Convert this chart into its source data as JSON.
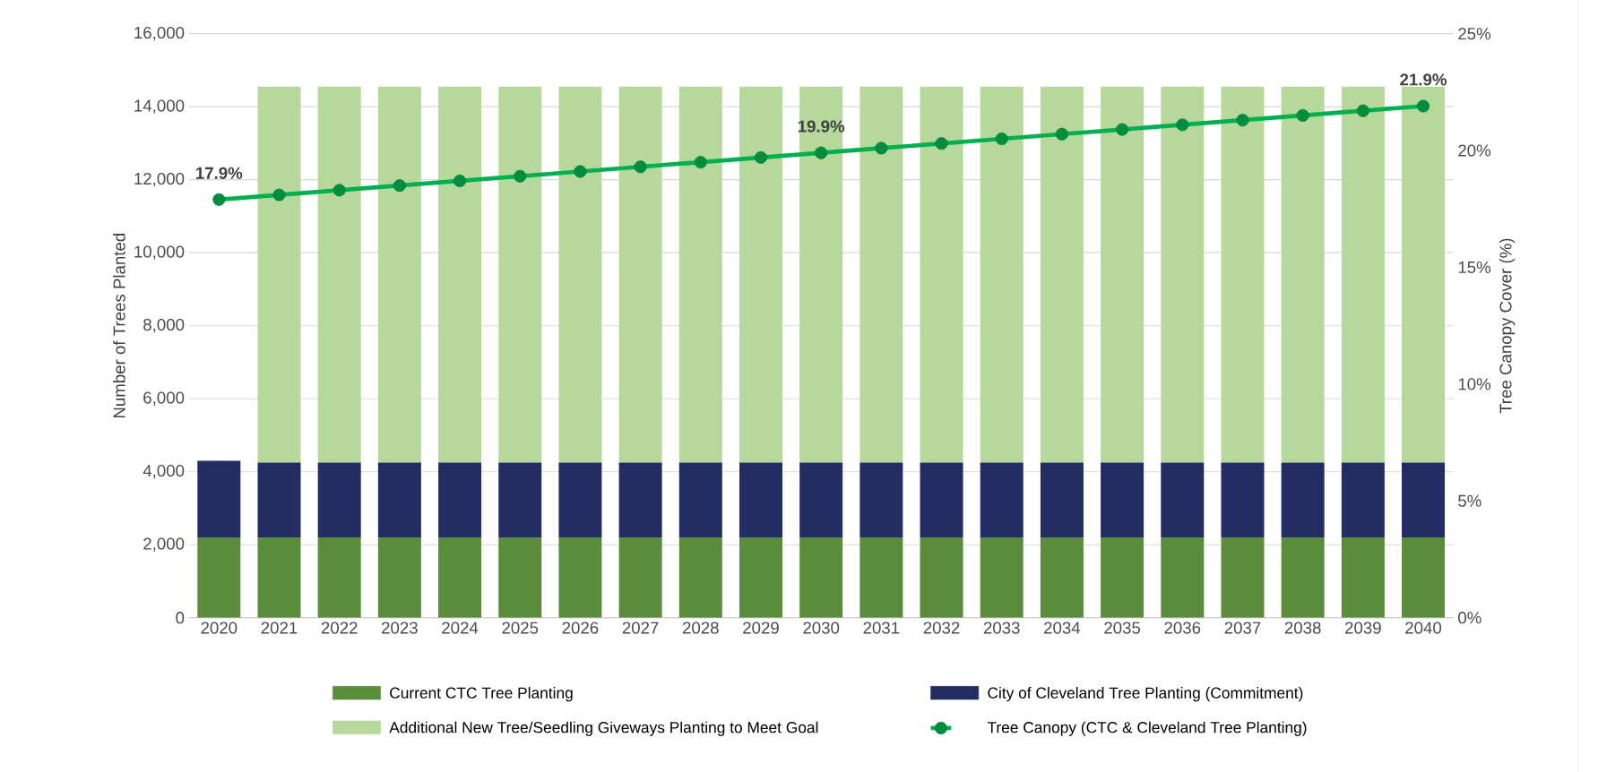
{
  "chart_data": {
    "type": "bar",
    "stacked": true,
    "ylabel": "Number of Trees Planted",
    "y2label": "Tree Canopy Cover (%)",
    "categories": [
      "2020",
      "2021",
      "2022",
      "2023",
      "2024",
      "2025",
      "2026",
      "2027",
      "2028",
      "2029",
      "2030",
      "2031",
      "2032",
      "2033",
      "2034",
      "2035",
      "2036",
      "2037",
      "2038",
      "2039",
      "2040"
    ],
    "series": [
      {
        "name": "Current CTC Tree Planting",
        "color": "#5b8c3b",
        "values": [
          2200,
          2200,
          2200,
          2200,
          2200,
          2200,
          2200,
          2200,
          2200,
          2200,
          2200,
          2200,
          2200,
          2200,
          2200,
          2200,
          2200,
          2200,
          2200,
          2200,
          2200
        ]
      },
      {
        "name": "City of Cleveland Tree Planting (Commitment)",
        "color": "#232c63",
        "values": [
          2100,
          2050,
          2050,
          2050,
          2050,
          2050,
          2050,
          2050,
          2050,
          2050,
          2050,
          2050,
          2050,
          2050,
          2050,
          2050,
          2050,
          2050,
          2050,
          2050,
          2050
        ]
      },
      {
        "name": "Additional New Tree/Seedling Giveways Planting to Meet Goal",
        "color": "#b6d99b",
        "values": [
          null,
          10300,
          10300,
          10300,
          10300,
          10300,
          10300,
          10300,
          10300,
          10300,
          10300,
          10300,
          10300,
          10300,
          10300,
          10300,
          10300,
          10300,
          10300,
          10300,
          10300
        ]
      },
      {
        "name": "Tree Canopy (CTC & Cleveland Tree Planting)",
        "type": "line",
        "axis": "y2",
        "color": "#00b050",
        "marker": "circle",
        "values": [
          17.9,
          18.1,
          18.3,
          18.5,
          18.7,
          18.9,
          19.1,
          19.3,
          19.5,
          19.7,
          19.9,
          20.1,
          20.3,
          20.5,
          20.7,
          20.9,
          21.1,
          21.3,
          21.5,
          21.7,
          21.9
        ],
        "value_labels": [
          "17.9%",
          null,
          null,
          null,
          null,
          null,
          null,
          null,
          null,
          null,
          "19.9%",
          null,
          null,
          null,
          null,
          null,
          null,
          null,
          null,
          null,
          "21.9%"
        ]
      }
    ],
    "ylim": [
      0,
      16000
    ],
    "yticks": [
      {
        "value": 0,
        "label": "0"
      },
      {
        "value": 2000,
        "label": "2,000"
      },
      {
        "value": 4000,
        "label": "4,000"
      },
      {
        "value": 6000,
        "label": "6,000"
      },
      {
        "value": 8000,
        "label": "8,000"
      },
      {
        "value": 10000,
        "label": "10,000"
      },
      {
        "value": 12000,
        "label": "12,000"
      },
      {
        "value": 14000,
        "label": "14,000"
      },
      {
        "value": 16000,
        "label": "16,000"
      }
    ],
    "y2lim": [
      0,
      25
    ],
    "y2ticks": [
      {
        "value": 0,
        "label": "0%"
      },
      {
        "value": 5,
        "label": "5%"
      },
      {
        "value": 10,
        "label": "10%"
      },
      {
        "value": 15,
        "label": "15%"
      },
      {
        "value": 20,
        "label": "20%"
      },
      {
        "value": 25,
        "label": "25%"
      }
    ],
    "grid": "y",
    "legend": "bottom"
  }
}
